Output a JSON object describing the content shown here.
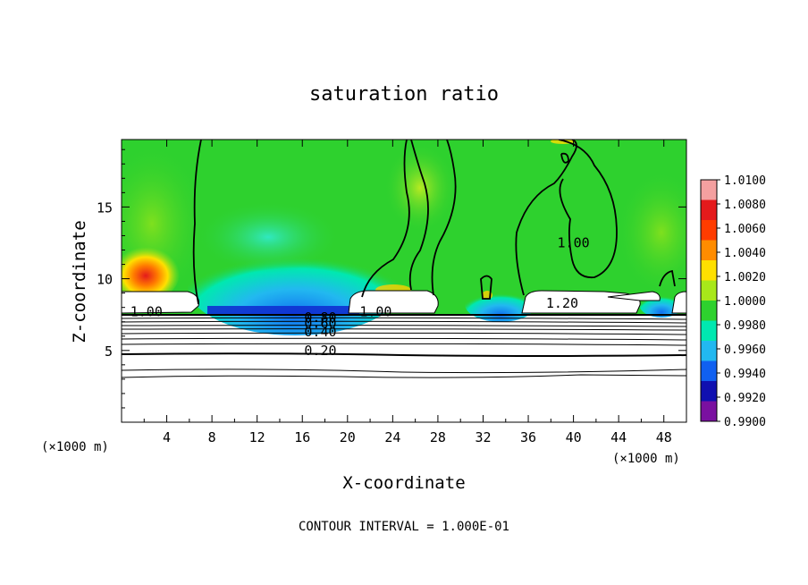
{
  "chart_data": {
    "type": "heatmap",
    "title": "saturation ratio",
    "xlabel": "X-coordinate",
    "ylabel": "Z-coordinate",
    "x_unit_left": "(×1000 m)",
    "x_unit_right": "(×1000 m)",
    "footer": "CONTOUR INTERVAL = 1.000E-01",
    "xlim": [
      0,
      50
    ],
    "ylim": [
      0,
      19.7
    ],
    "x_ticks": [
      "4",
      "8",
      "12",
      "16",
      "20",
      "24",
      "28",
      "32",
      "36",
      "40",
      "44",
      "48"
    ],
    "x_tick_values": [
      4,
      8,
      12,
      16,
      20,
      24,
      28,
      32,
      36,
      40,
      44,
      48
    ],
    "y_ticks": [
      "5",
      "10",
      "15"
    ],
    "y_tick_values": [
      5,
      10,
      15
    ],
    "colorbar": {
      "labels": [
        "1.0100",
        "1.0080",
        "1.0060",
        "1.0040",
        "1.0020",
        "1.0000",
        "0.9980",
        "0.9960",
        "0.9940",
        "0.9920",
        "0.9900"
      ],
      "values": [
        1.01,
        1.008,
        1.006,
        1.004,
        1.002,
        1.0,
        0.998,
        0.996,
        0.994,
        0.992,
        0.99
      ],
      "colors": [
        "#f4a0a0",
        "#e41a1c",
        "#ff3c00",
        "#ff8c00",
        "#ffe000",
        "#a8e81a",
        "#2ed12e",
        "#00e8b0",
        "#22b8f0",
        "#1060f0",
        "#1010b0",
        "#7a10a0"
      ]
    },
    "contour_labels": [
      {
        "text": "1.00",
        "x": 2.2,
        "z": 7.7
      },
      {
        "text": "0.80",
        "x": 17.6,
        "z": 7.3
      },
      {
        "text": "0.60",
        "x": 17.6,
        "z": 6.9
      },
      {
        "text": "0.40",
        "x": 17.6,
        "z": 6.3
      },
      {
        "text": "0.20",
        "x": 17.6,
        "z": 5.0
      },
      {
        "text": "1.00",
        "x": 22.5,
        "z": 7.7
      },
      {
        "text": "1.20",
        "x": 39.0,
        "z": 8.3
      },
      {
        "text": "1.00",
        "x": 40.0,
        "z": 12.5
      }
    ]
  }
}
